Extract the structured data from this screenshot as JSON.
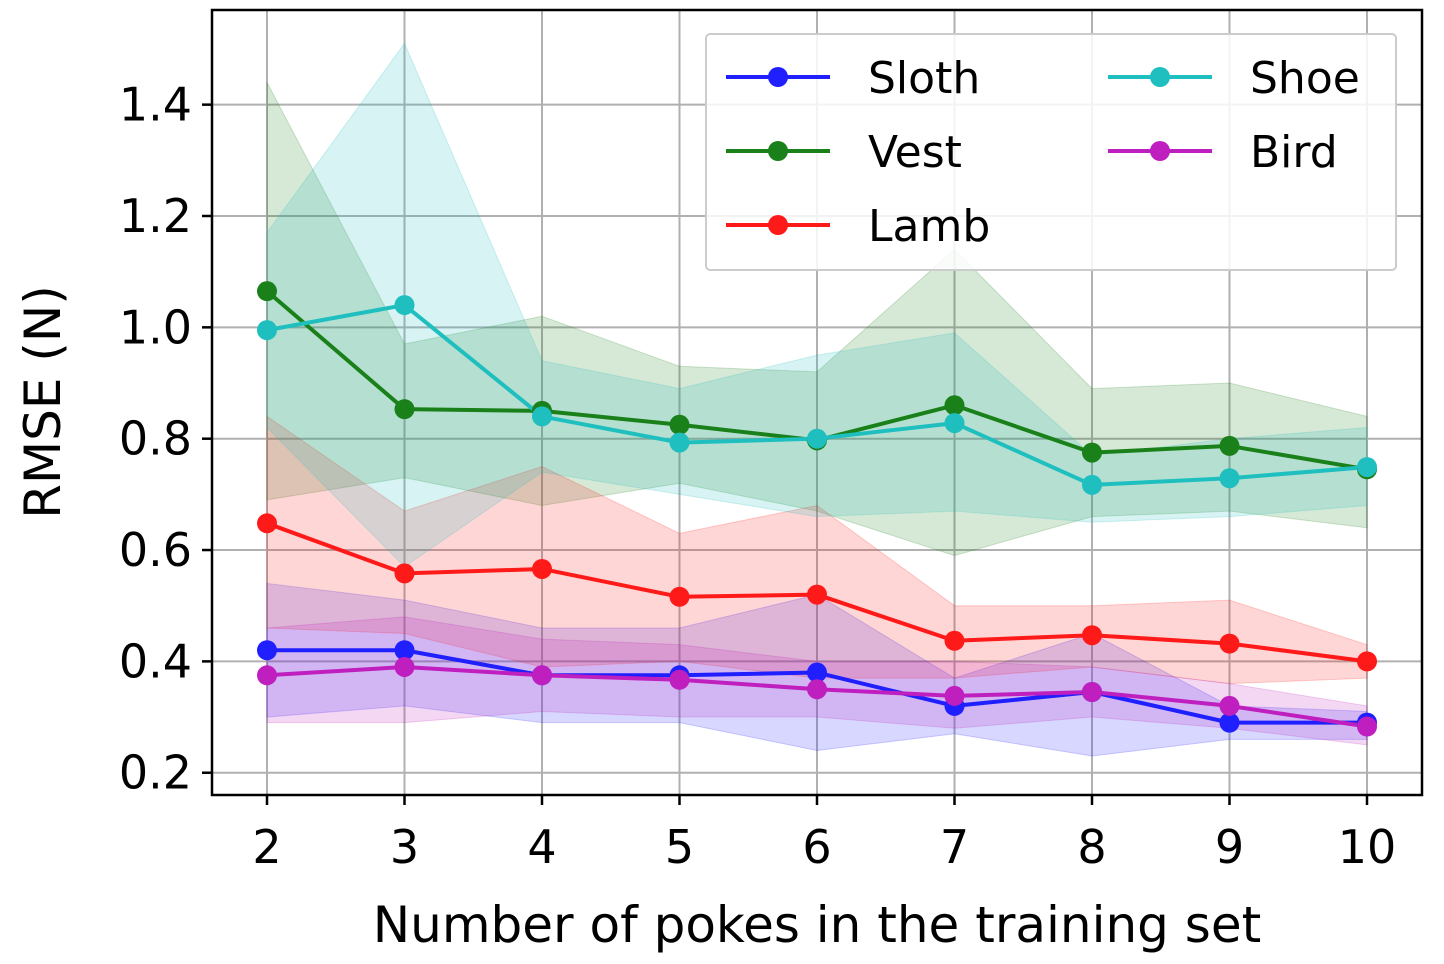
{
  "chart_data": {
    "type": "line",
    "xlabel": "Number of pokes in the training set",
    "ylabel": "RMSE (N)",
    "x": [
      2,
      3,
      4,
      5,
      6,
      7,
      8,
      9,
      10
    ],
    "xlim": [
      1.6,
      10.4
    ],
    "ylim": [
      0.16,
      1.57
    ],
    "x_ticks": [
      "2",
      "3",
      "4",
      "5",
      "6",
      "7",
      "8",
      "9",
      "10"
    ],
    "y_ticks": [
      "0.2",
      "0.4",
      "0.6",
      "0.8",
      "1.0",
      "1.2",
      "1.4"
    ],
    "y_tick_values": [
      0.2,
      0.4,
      0.6,
      0.8,
      1.0,
      1.2,
      1.4
    ],
    "grid": true,
    "legend": {
      "placement": "top-right",
      "columns": 2
    },
    "series": [
      {
        "name": "Sloth",
        "color": "#1f1fff",
        "values": [
          0.42,
          0.42,
          0.375,
          0.375,
          0.38,
          0.32,
          0.345,
          0.29,
          0.29
        ],
        "upper": [
          0.54,
          0.51,
          0.46,
          0.46,
          0.52,
          0.37,
          0.45,
          0.32,
          0.31
        ],
        "lower": [
          0.3,
          0.32,
          0.29,
          0.29,
          0.24,
          0.27,
          0.23,
          0.26,
          0.26
        ]
      },
      {
        "name": "Vest",
        "color": "#1a801a",
        "values": [
          1.065,
          0.853,
          0.85,
          0.825,
          0.797,
          0.86,
          0.775,
          0.787,
          0.745
        ],
        "upper": [
          1.44,
          0.97,
          1.02,
          0.93,
          0.92,
          1.14,
          0.89,
          0.9,
          0.84
        ],
        "lower": [
          0.69,
          0.73,
          0.68,
          0.72,
          0.67,
          0.59,
          0.66,
          0.67,
          0.64
        ]
      },
      {
        "name": "Lamb",
        "color": "#ff1a1a",
        "values": [
          0.648,
          0.558,
          0.566,
          0.516,
          0.52,
          0.437,
          0.447,
          0.432,
          0.4
        ],
        "upper": [
          0.84,
          0.67,
          0.75,
          0.63,
          0.68,
          0.5,
          0.5,
          0.51,
          0.43
        ],
        "lower": [
          0.46,
          0.45,
          0.39,
          0.4,
          0.37,
          0.37,
          0.39,
          0.36,
          0.37
        ]
      },
      {
        "name": "Shoe",
        "color": "#1fbfbf",
        "values": [
          0.995,
          1.04,
          0.84,
          0.793,
          0.8,
          0.828,
          0.717,
          0.729,
          0.749
        ],
        "upper": [
          1.17,
          1.51,
          0.94,
          0.89,
          0.95,
          0.99,
          0.77,
          0.8,
          0.82
        ],
        "lower": [
          0.82,
          0.57,
          0.74,
          0.7,
          0.66,
          0.67,
          0.65,
          0.66,
          0.68
        ]
      },
      {
        "name": "Bird",
        "color": "#bf1fbf",
        "values": [
          0.375,
          0.39,
          0.375,
          0.367,
          0.35,
          0.338,
          0.345,
          0.32,
          0.283
        ],
        "upper": [
          0.46,
          0.48,
          0.44,
          0.43,
          0.4,
          0.4,
          0.39,
          0.36,
          0.32
        ],
        "lower": [
          0.29,
          0.29,
          0.31,
          0.3,
          0.3,
          0.28,
          0.3,
          0.28,
          0.25
        ]
      }
    ]
  }
}
